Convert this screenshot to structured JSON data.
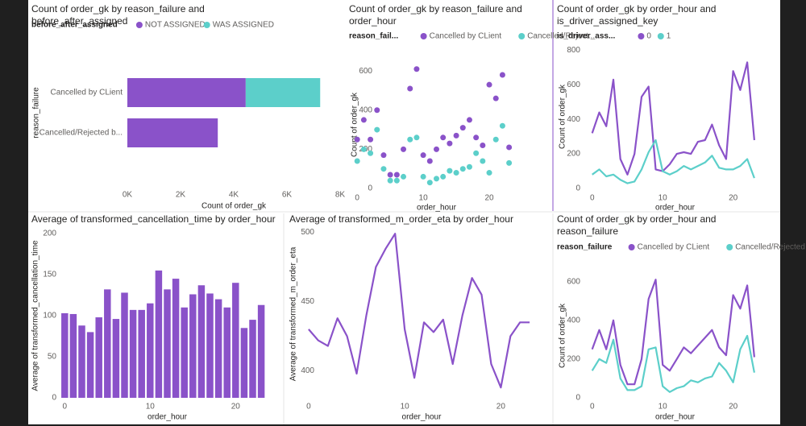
{
  "chart_data": [
    {
      "type": "bar",
      "orientation": "horizontal",
      "stacked": true,
      "title": "Count of order_gk by reason_failure and before_after_assigned",
      "legend_title": "before_after_assigned",
      "categories": [
        "Cancelled by CLient",
        "Cancelled/Rejected b..."
      ],
      "series": [
        {
          "name": "NOT ASSIGNED",
          "color": "#8a52c9",
          "values": [
            4450,
            3400
          ]
        },
        {
          "name": "WAS ASSIGNED",
          "color": "#5ccfca",
          "values": [
            2800,
            0
          ]
        }
      ],
      "xlim": [
        0,
        8000
      ],
      "xticks": [
        {
          "value": 0,
          "label": "0K"
        },
        {
          "value": 2000,
          "label": "2K"
        },
        {
          "value": 4000,
          "label": "4K"
        },
        {
          "value": 6000,
          "label": "6K"
        },
        {
          "value": 8000,
          "label": "8K"
        }
      ],
      "xlabel": "Count of order_gk",
      "ylabel": "reason_failure"
    },
    {
      "type": "scatter",
      "title": "Count of order_gk by reason_failure and order_hour",
      "legend_title": "reason_fail...",
      "x": [
        0,
        1,
        2,
        3,
        4,
        5,
        6,
        7,
        8,
        9,
        10,
        11,
        12,
        13,
        14,
        15,
        16,
        17,
        18,
        19,
        20,
        21,
        22,
        23
      ],
      "series": [
        {
          "name": "Cancelled by CLient",
          "color": "#8a52c9",
          "values": [
            250,
            350,
            250,
            400,
            170,
            70,
            70,
            200,
            510,
            610,
            170,
            140,
            200,
            260,
            230,
            270,
            310,
            350,
            260,
            220,
            530,
            460,
            580,
            210
          ]
        },
        {
          "name": "Cancelled/Reject...",
          "color": "#5ccfca",
          "values": [
            140,
            200,
            180,
            300,
            100,
            40,
            40,
            60,
            250,
            260,
            60,
            30,
            50,
            60,
            90,
            80,
            100,
            110,
            180,
            140,
            80,
            250,
            320,
            130
          ]
        }
      ],
      "xlim": [
        -1,
        25
      ],
      "xticks": [
        0,
        10,
        20
      ],
      "ylim": [
        0,
        650
      ],
      "yticks": [
        0,
        200,
        400,
        600
      ],
      "xlabel": "order_hour",
      "ylabel": "Count of order_gk"
    },
    {
      "type": "line",
      "title": "Count of order_gk by order_hour and is_driver_assigned_key",
      "legend_title": "is_driver_ass...",
      "x": [
        0,
        1,
        2,
        3,
        4,
        5,
        6,
        7,
        8,
        9,
        10,
        11,
        12,
        13,
        14,
        15,
        16,
        17,
        18,
        19,
        20,
        21,
        22,
        23
      ],
      "series": [
        {
          "name": "0",
          "color": "#8a52c9",
          "values": [
            320,
            440,
            360,
            630,
            170,
            80,
            200,
            530,
            590,
            110,
            100,
            140,
            200,
            210,
            200,
            270,
            280,
            370,
            250,
            170,
            680,
            570,
            730,
            280
          ]
        },
        {
          "name": "1",
          "color": "#5ccfca",
          "values": [
            80,
            110,
            70,
            80,
            50,
            30,
            40,
            110,
            210,
            280,
            100,
            80,
            100,
            130,
            110,
            130,
            150,
            190,
            120,
            110,
            110,
            130,
            170,
            60
          ]
        }
      ],
      "xlim": [
        -1,
        24.5
      ],
      "xticks": [
        0,
        10,
        20
      ],
      "ylim": [
        0,
        830
      ],
      "yticks": [
        0,
        200,
        400,
        600,
        800
      ],
      "xlabel": "order_hour",
      "ylabel": "Count of order_gk"
    },
    {
      "type": "bar",
      "title": "Average of transformed_cancellation_time by order_hour",
      "x": [
        0,
        1,
        2,
        3,
        4,
        5,
        6,
        7,
        8,
        9,
        10,
        11,
        12,
        13,
        14,
        15,
        16,
        17,
        18,
        19,
        20,
        21,
        22,
        23
      ],
      "values": [
        103,
        102,
        88,
        80,
        98,
        132,
        96,
        128,
        107,
        107,
        115,
        155,
        132,
        145,
        110,
        126,
        137,
        127,
        120,
        110,
        140,
        85,
        95,
        113
      ],
      "color": "#8a52c9",
      "xlim": [
        -0.5,
        24.5
      ],
      "xticks": [
        0,
        10,
        20
      ],
      "ylim": [
        0,
        200
      ],
      "yticks": [
        0,
        50,
        100,
        150,
        200
      ],
      "xlabel": "order_hour",
      "ylabel": "Average of transformed_cancellation_time"
    },
    {
      "type": "line",
      "title": "Average of transformed_m_order_eta by order_hour",
      "x": [
        0,
        1,
        2,
        3,
        4,
        5,
        6,
        7,
        8,
        9,
        10,
        11,
        12,
        13,
        14,
        15,
        16,
        17,
        18,
        19,
        20,
        21,
        22,
        23
      ],
      "values": [
        430,
        422,
        418,
        438,
        425,
        398,
        440,
        475,
        488,
        499,
        430,
        395,
        435,
        428,
        437,
        405,
        440,
        467,
        455,
        405,
        388,
        425,
        435,
        435
      ],
      "color": "#8a52c9",
      "xlim": [
        -1,
        24.5
      ],
      "xticks": [
        0,
        10,
        20
      ],
      "ylim": [
        380,
        502
      ],
      "yticks": [
        400,
        450,
        500
      ],
      "xlabel": "order_hour",
      "ylabel": "Average of transformed_m_order_eta"
    },
    {
      "type": "line",
      "title": "Count of order_gk by order_hour and reason_failure",
      "legend_title": "reason_failure",
      "x": [
        0,
        1,
        2,
        3,
        4,
        5,
        6,
        7,
        8,
        9,
        10,
        11,
        12,
        13,
        14,
        15,
        16,
        17,
        18,
        19,
        20,
        21,
        22,
        23
      ],
      "series": [
        {
          "name": "Cancelled by CLient",
          "color": "#8a52c9",
          "values": [
            250,
            350,
            250,
            400,
            170,
            70,
            70,
            200,
            510,
            610,
            170,
            140,
            200,
            260,
            230,
            270,
            310,
            350,
            260,
            220,
            530,
            460,
            580,
            210
          ]
        },
        {
          "name": "Cancelled/Rejected ...",
          "color": "#5ccfca",
          "values": [
            140,
            200,
            180,
            300,
            100,
            40,
            40,
            60,
            250,
            260,
            60,
            30,
            50,
            60,
            90,
            80,
            100,
            110,
            180,
            140,
            80,
            250,
            320,
            130
          ]
        }
      ],
      "xlim": [
        -1,
        24.5
      ],
      "xticks": [
        0,
        10,
        20
      ],
      "ylim": [
        0,
        640
      ],
      "yticks": [
        0,
        200,
        400,
        600
      ],
      "xlabel": "order_hour",
      "ylabel": "Count of order_gk"
    }
  ]
}
